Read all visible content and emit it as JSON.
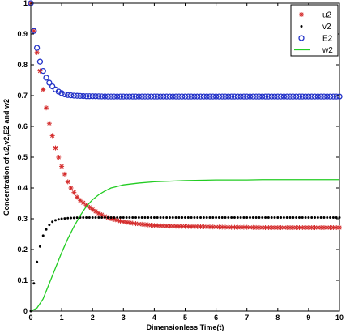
{
  "chart_data": {
    "type": "scatter",
    "xlabel": "Dimensionless Time(t)",
    "ylabel": "Concentration of u2,v2,E2 and w2",
    "xlim": [
      0,
      10
    ],
    "ylim": [
      0,
      1
    ],
    "x_ticks": [
      "0",
      "1",
      "2",
      "3",
      "4",
      "5",
      "6",
      "7",
      "8",
      "9",
      "10"
    ],
    "y_ticks": [
      "0",
      "0.1",
      "0.2",
      "0.3",
      "0.4",
      "0.5",
      "0.6",
      "0.7",
      "0.8",
      "0.9",
      "1"
    ],
    "grid": false,
    "legend_position": "top-right",
    "series": [
      {
        "name": "u2",
        "marker": "star",
        "color": "#d42b2b",
        "x": [
          0,
          0.1,
          0.2,
          0.3,
          0.4,
          0.5,
          0.6,
          0.7,
          0.8,
          0.9,
          1.0,
          1.1,
          1.2,
          1.3,
          1.4,
          1.5,
          1.6,
          1.7,
          1.8,
          1.9,
          2.0,
          2.2,
          2.4,
          2.6,
          2.8,
          3.0,
          3.2,
          3.4,
          3.6,
          3.8,
          4.0,
          4.5,
          5.0,
          5.5,
          6.0,
          6.5,
          7.0,
          7.5,
          8.0,
          8.5,
          9.0,
          9.5,
          10.0
        ],
        "y": [
          1.0,
          0.91,
          0.84,
          0.78,
          0.72,
          0.66,
          0.61,
          0.57,
          0.53,
          0.5,
          0.47,
          0.445,
          0.42,
          0.4,
          0.385,
          0.37,
          0.36,
          0.352,
          0.344,
          0.337,
          0.33,
          0.318,
          0.308,
          0.3,
          0.295,
          0.29,
          0.287,
          0.284,
          0.282,
          0.28,
          0.278,
          0.276,
          0.275,
          0.274,
          0.273,
          0.272,
          0.272,
          0.271,
          0.271,
          0.271,
          0.271,
          0.271,
          0.271
        ]
      },
      {
        "name": "v2",
        "marker": "dot",
        "color": "#000000",
        "x": [
          0,
          0.1,
          0.2,
          0.3,
          0.4,
          0.5,
          0.6,
          0.7,
          0.8,
          0.9,
          1.0,
          1.2,
          1.4,
          1.6,
          1.8,
          2.0,
          2.5,
          3.0,
          3.5,
          4.0,
          4.5,
          5.0,
          5.5,
          6.0,
          6.5,
          7.0,
          7.5,
          8.0,
          8.5,
          9.0,
          9.5,
          10.0
        ],
        "y": [
          0.0,
          0.09,
          0.16,
          0.21,
          0.245,
          0.265,
          0.28,
          0.29,
          0.295,
          0.298,
          0.3,
          0.302,
          0.303,
          0.304,
          0.304,
          0.304,
          0.304,
          0.304,
          0.304,
          0.304,
          0.304,
          0.304,
          0.304,
          0.304,
          0.304,
          0.304,
          0.304,
          0.304,
          0.304,
          0.304,
          0.304,
          0.304
        ]
      },
      {
        "name": "E2",
        "marker": "circle",
        "color": "#2332c8",
        "x": [
          0,
          0.1,
          0.2,
          0.3,
          0.4,
          0.5,
          0.6,
          0.7,
          0.8,
          0.9,
          1.0,
          1.1,
          1.2,
          1.4,
          1.6,
          1.8,
          2.0,
          2.5,
          3.0,
          3.5,
          4.0,
          4.5,
          5.0,
          5.5,
          6.0,
          6.5,
          7.0,
          7.5,
          8.0,
          8.5,
          9.0,
          9.5,
          10.0
        ],
        "y": [
          1.0,
          0.91,
          0.855,
          0.81,
          0.78,
          0.758,
          0.742,
          0.73,
          0.72,
          0.713,
          0.708,
          0.704,
          0.702,
          0.7,
          0.699,
          0.698,
          0.698,
          0.697,
          0.697,
          0.697,
          0.697,
          0.697,
          0.697,
          0.697,
          0.697,
          0.697,
          0.697,
          0.697,
          0.697,
          0.697,
          0.697,
          0.697,
          0.697
        ]
      },
      {
        "name": "w2",
        "marker": "line",
        "color": "#22cc22",
        "x": [
          0,
          0.2,
          0.4,
          0.6,
          0.8,
          1.0,
          1.2,
          1.4,
          1.6,
          1.8,
          2.0,
          2.2,
          2.4,
          2.6,
          2.8,
          3.0,
          3.5,
          4.0,
          4.5,
          5.0,
          5.5,
          6.0,
          6.5,
          7.0,
          7.5,
          8.0,
          8.5,
          9.0,
          9.5,
          10.0
        ],
        "y": [
          0.0,
          0.01,
          0.04,
          0.09,
          0.14,
          0.19,
          0.235,
          0.275,
          0.31,
          0.34,
          0.362,
          0.378,
          0.39,
          0.4,
          0.405,
          0.41,
          0.416,
          0.42,
          0.422,
          0.424,
          0.425,
          0.426,
          0.426,
          0.426,
          0.427,
          0.427,
          0.427,
          0.427,
          0.427,
          0.427
        ]
      }
    ]
  }
}
